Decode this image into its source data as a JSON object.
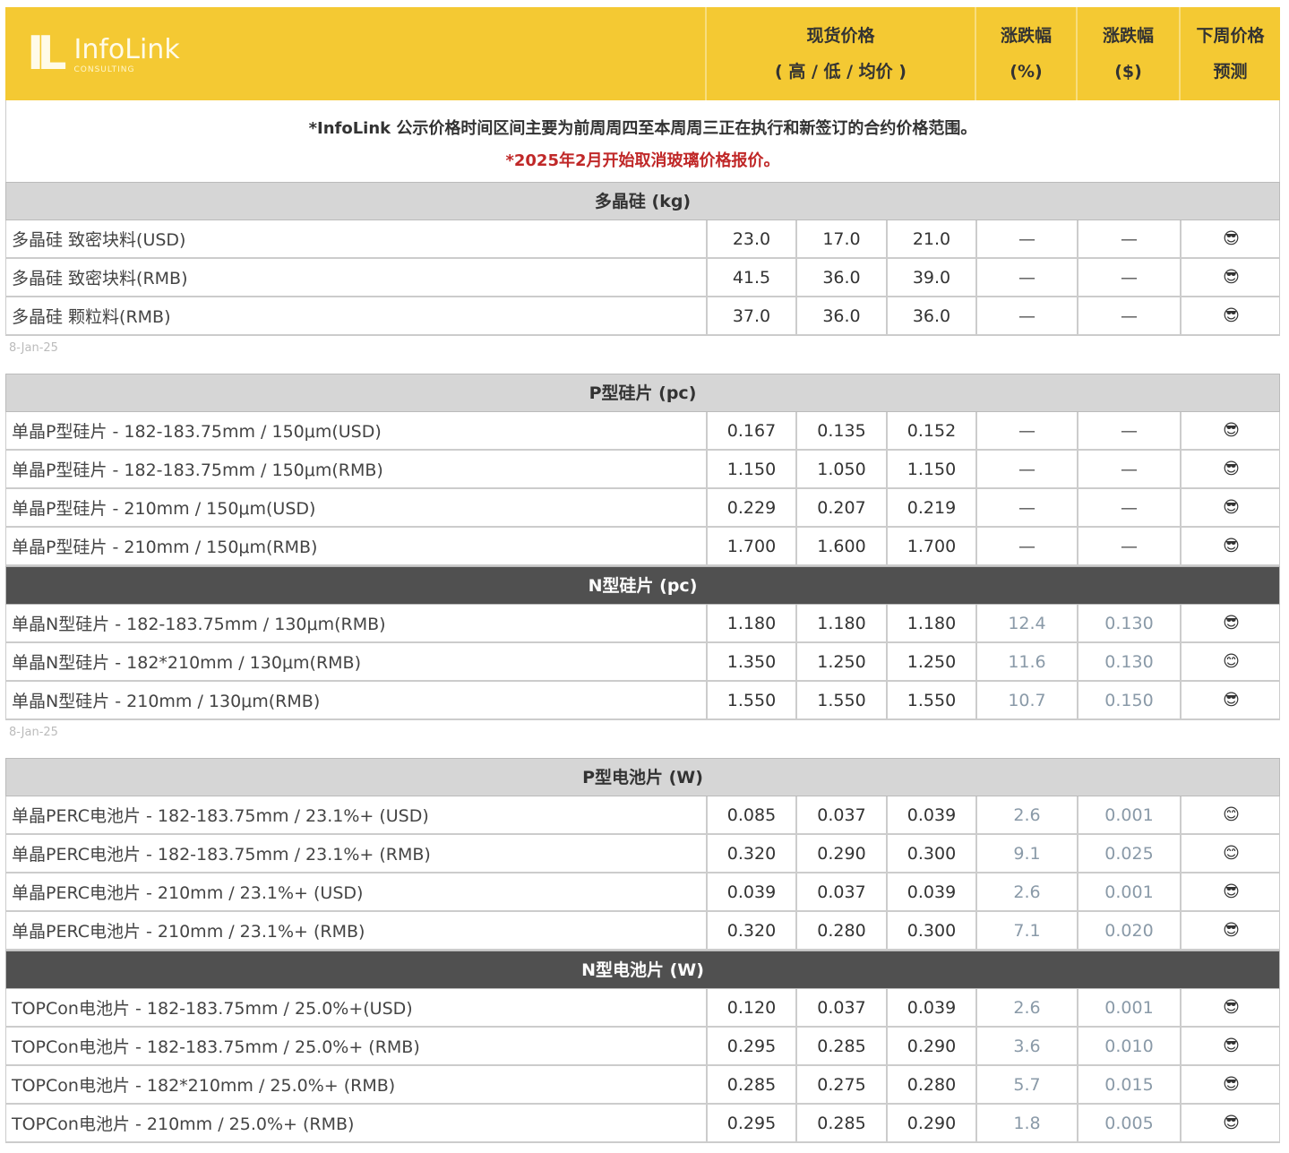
{
  "header": {
    "logo_text": "InfoLink",
    "logo_sub": "CONSULTING",
    "spot_price": "现货价格",
    "spot_sub": "( 高 / 低 / 均价 )",
    "chg_pct": "涨跌幅",
    "chg_pct_unit": "(%)",
    "chg_usd": "涨跌幅",
    "chg_usd_unit": "($)",
    "forecast": "下周价格",
    "forecast2": "预测",
    "colors": {
      "header_bg": "#f4c933",
      "section_light": "#d6d6d6",
      "section_dark": "#505050",
      "note_red": "#c02828"
    }
  },
  "notes": {
    "line1": "*InfoLink 公示价格时间区间主要为前周周四至本周周三正在执行和新签订的合约价格范围。",
    "line2": "*2025年2月开始取消玻璃价格报价。"
  },
  "sections": [
    {
      "title": "多晶硅 (kg)",
      "dark": false,
      "rows": [
        {
          "label": "多晶硅 致密块料(USD)",
          "high": "23.0",
          "low": "17.0",
          "avg": "21.0",
          "pct": "—",
          "usd": "—",
          "forecast": "sunglasses"
        },
        {
          "label": "多晶硅 致密块料(RMB)",
          "high": "41.5",
          "low": "36.0",
          "avg": "39.0",
          "pct": "—",
          "usd": "—",
          "forecast": "sunglasses"
        },
        {
          "label": "多晶硅 颗粒料(RMB)",
          "high": "37.0",
          "low": "36.0",
          "avg": "36.0",
          "pct": "—",
          "usd": "—",
          "forecast": "sunglasses"
        }
      ],
      "date": "8-Jan-25"
    },
    {
      "title": "P型硅片 (pc)",
      "dark": false,
      "rows": [
        {
          "label": "单晶P型硅片 - 182-183.75mm / 150μm(USD)",
          "high": "0.167",
          "low": "0.135",
          "avg": "0.152",
          "pct": "—",
          "usd": "—",
          "forecast": "sunglasses"
        },
        {
          "label": "单晶P型硅片 - 182-183.75mm / 150μm(RMB)",
          "high": "1.150",
          "low": "1.050",
          "avg": "1.150",
          "pct": "—",
          "usd": "—",
          "forecast": "sunglasses"
        },
        {
          "label": "单晶P型硅片 - 210mm / 150μm(USD)",
          "high": "0.229",
          "low": "0.207",
          "avg": "0.219",
          "pct": "—",
          "usd": "—",
          "forecast": "sunglasses"
        },
        {
          "label": "单晶P型硅片 - 210mm / 150μm(RMB)",
          "high": "1.700",
          "low": "1.600",
          "avg": "1.700",
          "pct": "—",
          "usd": "—",
          "forecast": "sunglasses"
        }
      ]
    },
    {
      "title": "N型硅片 (pc)",
      "dark": true,
      "rows": [
        {
          "label": "单晶N型硅片 - 182-183.75mm / 130μm(RMB)",
          "high": "1.180",
          "low": "1.180",
          "avg": "1.180",
          "pct": "12.4",
          "usd": "0.130",
          "forecast": "sunglasses"
        },
        {
          "label": "单晶N型硅片 - 182*210mm / 130μm(RMB)",
          "high": "1.350",
          "low": "1.250",
          "avg": "1.250",
          "pct": "11.6",
          "usd": "0.130",
          "forecast": "smile"
        },
        {
          "label": "单晶N型硅片 - 210mm / 130μm(RMB)",
          "high": "1.550",
          "low": "1.550",
          "avg": "1.550",
          "pct": "10.7",
          "usd": "0.150",
          "forecast": "sunglasses"
        }
      ],
      "date": "8-Jan-25"
    },
    {
      "title": "P型电池片 (W)",
      "dark": false,
      "rows": [
        {
          "label": "单晶PERC电池片 - 182-183.75mm / 23.1%+ (USD)",
          "high": "0.085",
          "low": "0.037",
          "avg": "0.039",
          "pct": "2.6",
          "usd": "0.001",
          "forecast": "smile"
        },
        {
          "label": "单晶PERC电池片 - 182-183.75mm / 23.1%+ (RMB)",
          "high": "0.320",
          "low": "0.290",
          "avg": "0.300",
          "pct": "9.1",
          "usd": "0.025",
          "forecast": "smile"
        },
        {
          "label": "单晶PERC电池片 - 210mm / 23.1%+ (USD)",
          "high": "0.039",
          "low": "0.037",
          "avg": "0.039",
          "pct": "2.6",
          "usd": "0.001",
          "forecast": "sunglasses"
        },
        {
          "label": "单晶PERC电池片 - 210mm / 23.1%+ (RMB)",
          "high": "0.320",
          "low": "0.280",
          "avg": "0.300",
          "pct": "7.1",
          "usd": "0.020",
          "forecast": "sunglasses"
        }
      ]
    },
    {
      "title": "N型电池片 (W)",
      "dark": true,
      "rows": [
        {
          "label": "TOPCon电池片 - 182-183.75mm / 25.0%+(USD)",
          "high": "0.120",
          "low": "0.037",
          "avg": "0.039",
          "pct": "2.6",
          "usd": "0.001",
          "forecast": "sunglasses"
        },
        {
          "label": "TOPCon电池片 - 182-183.75mm / 25.0%+ (RMB)",
          "high": "0.295",
          "low": "0.285",
          "avg": "0.290",
          "pct": "3.6",
          "usd": "0.010",
          "forecast": "sunglasses"
        },
        {
          "label": "TOPCon电池片 - 182*210mm / 25.0%+ (RMB)",
          "high": "0.285",
          "low": "0.275",
          "avg": "0.280",
          "pct": "5.7",
          "usd": "0.015",
          "forecast": "sunglasses"
        },
        {
          "label": "TOPCon电池片 - 210mm / 25.0%+ (RMB)",
          "high": "0.295",
          "low": "0.285",
          "avg": "0.290",
          "pct": "1.8",
          "usd": "0.005",
          "forecast": "sunglasses"
        }
      ]
    }
  ]
}
